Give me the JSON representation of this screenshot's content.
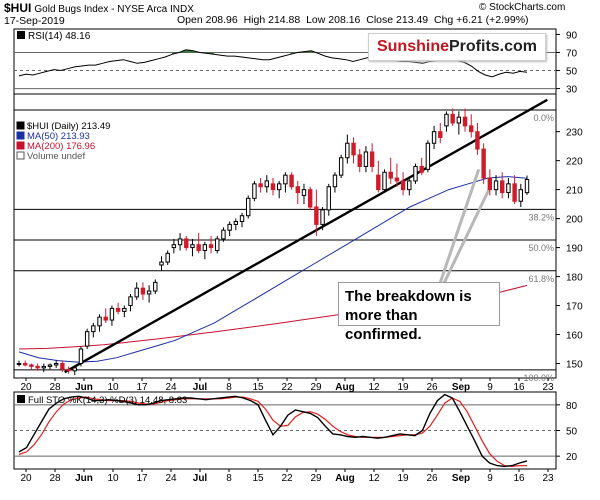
{
  "header": {
    "symbol": "$HUI",
    "name": "Gold Bugs Index - NYSE Arca INDX",
    "source": "© StockCharts.com",
    "date": "17-Sep-2019",
    "open_label": "Open",
    "open": "208.96",
    "high_label": "High",
    "high": "214.88",
    "low_label": "Low",
    "low": "208.16",
    "close_label": "Close",
    "close": "213.49",
    "chg_label": "Chg",
    "chg": "+6.21 (+2.99%)"
  },
  "watermark": {
    "part1": "Sunshine",
    "part2": "Profits.com"
  },
  "annotation": {
    "line1": "The breakdown is",
    "line2": "more than confirmed."
  },
  "colors": {
    "up": "#000000",
    "down": "#d11a2a",
    "ma50": "#1b2fa6",
    "ma200": "#c8102e",
    "rsi_fill": "#3c7a3c",
    "sto_k": "#000000",
    "sto_d": "#e0201c"
  },
  "chart_data": [
    {
      "type": "candlestick",
      "legend": [
        "$HUI (Daily) 213.49",
        "MA(50) 213.93",
        "MA(200) 176.96",
        "Volume undef"
      ],
      "ylim": [
        145,
        243
      ],
      "yticks": [
        150,
        160,
        170,
        180,
        190,
        200,
        210,
        220,
        230
      ],
      "x_ticks": [
        "20",
        "28",
        "Jun",
        "10",
        "17",
        "24",
        "Jul",
        "8",
        "15",
        "22",
        "29",
        "Aug",
        "12",
        "19",
        "26",
        "Sep",
        "9",
        "16",
        "23"
      ],
      "bold_ticks": [
        "Jun",
        "Jul",
        "Aug",
        "Sep"
      ],
      "fib_levels": [
        {
          "label": "0.0%",
          "value": 237.5
        },
        {
          "label": "38.2%",
          "value": 203.2
        },
        {
          "label": "50.0%",
          "value": 192.6
        },
        {
          "label": "61.8%",
          "value": 182.0
        },
        {
          "label": "100.0%",
          "value": 147.8
        }
      ],
      "ohlc": [
        [
          150,
          151,
          149,
          150
        ],
        [
          150,
          151,
          149,
          149.5
        ],
        [
          149.5,
          150,
          148,
          149
        ],
        [
          149,
          150,
          147.5,
          148.5
        ],
        [
          148.5,
          150,
          147,
          149
        ],
        [
          149,
          150,
          148,
          149.5
        ],
        [
          149.5,
          151,
          148.5,
          150
        ],
        [
          150,
          151,
          147,
          148
        ],
        [
          148,
          149,
          146.5,
          147.5
        ],
        [
          147.5,
          149,
          146,
          148.5
        ],
        [
          150,
          156,
          149,
          155
        ],
        [
          156,
          162,
          155,
          161
        ],
        [
          161,
          164,
          159,
          163
        ],
        [
          163,
          167,
          161,
          166
        ],
        [
          166,
          169,
          164,
          165
        ],
        [
          165,
          170,
          163,
          169
        ],
        [
          169,
          171,
          167,
          168
        ],
        [
          168,
          170,
          166,
          169
        ],
        [
          170,
          174,
          168,
          173
        ],
        [
          173,
          178,
          172,
          176
        ],
        [
          176,
          178,
          172,
          174
        ],
        [
          174,
          177,
          171,
          175
        ],
        [
          175,
          179,
          174,
          178
        ],
        [
          184,
          187,
          182,
          185
        ],
        [
          185,
          189,
          184,
          188
        ],
        [
          190,
          193,
          188,
          191
        ],
        [
          191,
          195,
          189,
          193
        ],
        [
          193,
          194,
          189,
          190
        ],
        [
          190,
          193,
          187,
          191
        ],
        [
          191,
          195,
          188,
          189
        ],
        [
          189,
          192,
          186,
          191
        ],
        [
          191,
          194,
          188,
          190
        ],
        [
          189,
          194,
          188,
          193
        ],
        [
          193,
          197,
          192,
          196
        ],
        [
          196,
          199,
          194,
          198
        ],
        [
          198,
          200,
          196,
          199
        ],
        [
          199,
          202,
          197,
          201
        ],
        [
          201,
          208,
          200,
          207
        ],
        [
          207,
          213,
          206,
          212
        ],
        [
          212,
          214,
          209,
          211
        ],
        [
          211,
          215,
          209,
          213
        ],
        [
          212,
          214,
          208,
          210
        ],
        [
          210,
          213,
          207,
          212
        ],
        [
          212,
          216,
          209,
          215
        ],
        [
          215,
          216,
          210,
          211
        ],
        [
          211,
          213,
          205,
          209
        ],
        [
          208,
          212,
          205,
          210
        ],
        [
          210,
          211,
          203,
          204
        ],
        [
          204,
          210,
          194,
          198
        ],
        [
          198,
          204,
          196,
          203
        ],
        [
          203,
          212,
          201,
          211
        ],
        [
          211,
          216,
          209,
          215
        ],
        [
          215,
          222,
          214,
          221
        ],
        [
          221,
          229,
          219,
          226
        ],
        [
          226,
          228,
          219,
          222
        ],
        [
          222,
          224,
          216,
          218
        ],
        [
          218,
          225,
          216,
          223
        ],
        [
          223,
          226,
          216,
          218
        ],
        [
          215,
          220,
          209,
          210
        ],
        [
          210,
          217,
          209,
          216
        ],
        [
          216,
          221,
          212,
          214
        ],
        [
          214,
          219,
          211,
          213
        ],
        [
          213,
          216,
          208,
          210
        ],
        [
          210,
          214,
          208,
          213
        ],
        [
          213,
          219,
          212,
          218
        ],
        [
          218,
          221,
          215,
          216
        ],
        [
          217,
          227,
          216,
          226
        ],
        [
          226,
          232,
          224,
          230
        ],
        [
          230,
          233,
          226,
          228
        ],
        [
          232,
          237,
          230,
          236
        ],
        [
          236,
          238,
          232,
          233
        ],
        [
          233,
          237,
          229,
          235
        ],
        [
          235,
          238,
          230,
          232
        ],
        [
          232,
          236,
          228,
          230
        ],
        [
          230,
          233,
          222,
          224
        ],
        [
          224,
          226,
          212,
          214
        ],
        [
          214,
          217,
          208,
          210
        ],
        [
          210,
          215,
          208,
          213
        ],
        [
          213,
          216,
          207,
          209
        ],
        [
          209,
          214,
          207,
          212
        ],
        [
          212,
          215,
          205,
          206
        ],
        [
          206,
          212,
          204,
          210
        ],
        [
          208.96,
          214.88,
          208.16,
          213.49
        ]
      ],
      "ma50": [
        154,
        152,
        151,
        150.5,
        150.8,
        152,
        154,
        156,
        158,
        161,
        164,
        168,
        172,
        176,
        180,
        184,
        188,
        192,
        196,
        200,
        204,
        207,
        210,
        212,
        214,
        214.5,
        213.93
      ],
      "ma200": [
        155,
        155.2,
        155.8,
        156.5,
        157.5,
        158.6,
        159.8,
        161,
        162.3,
        163.6,
        165,
        166.4,
        167.8,
        169.2,
        170.5,
        171.8,
        173,
        174.5,
        176.96
      ]
    },
    {
      "type": "line",
      "title": "RSI(14) 48.16",
      "ylim": [
        24,
        96
      ],
      "yticks": [
        30,
        50,
        70,
        90
      ],
      "reference_lines": [
        70,
        50,
        30
      ],
      "values": [
        44,
        46,
        45,
        47,
        49,
        51,
        50,
        52,
        54,
        55,
        56,
        56,
        58,
        60,
        61,
        62,
        60,
        58,
        59,
        61,
        63,
        65,
        68,
        70,
        73,
        72,
        70,
        69,
        68,
        67,
        66,
        66,
        65,
        64,
        63,
        62,
        62,
        64,
        66,
        68,
        70,
        71,
        72,
        69,
        66,
        64,
        63,
        62,
        60,
        62,
        64,
        66,
        64,
        62,
        61,
        60,
        60,
        59,
        58,
        60,
        61,
        62,
        63,
        61,
        59,
        55,
        49,
        45,
        43,
        46,
        48,
        47,
        49,
        48.16
      ]
    },
    {
      "type": "line",
      "title": "Full STO %K(14,3) %D(3) 14.48, 8.83",
      "series": [
        {
          "name": "%K",
          "value": 14.48
        },
        {
          "name": "%D",
          "value": 8.83
        }
      ],
      "ylim": [
        5,
        95
      ],
      "yticks": [
        20,
        50,
        80
      ],
      "reference_lines": [
        80,
        50,
        20
      ],
      "k": [
        25,
        30,
        45,
        60,
        75,
        82,
        87,
        89,
        90,
        88,
        85,
        85,
        86,
        85,
        84,
        82,
        80,
        80,
        82,
        85,
        86,
        87,
        88,
        88,
        87,
        86,
        87,
        88,
        89,
        90,
        88,
        85,
        80,
        62,
        45,
        55,
        68,
        74,
        72,
        70,
        65,
        55,
        46,
        45,
        43,
        42,
        43,
        42,
        41,
        42,
        44,
        46,
        45,
        44,
        50,
        70,
        85,
        92,
        88,
        72,
        55,
        38,
        20,
        12,
        9,
        8,
        9,
        12,
        14.48
      ],
      "d": [
        22,
        25,
        33,
        45,
        60,
        72,
        81,
        86,
        88,
        89,
        87,
        86,
        85,
        85,
        85,
        84,
        82,
        81,
        81,
        83,
        85,
        86,
        87,
        87,
        87,
        87,
        87,
        87,
        88,
        89,
        89,
        87,
        84,
        75,
        62,
        55,
        56,
        66,
        71,
        72,
        69,
        63,
        55,
        49,
        45,
        43,
        42,
        42,
        42,
        42,
        43,
        44,
        45,
        45,
        47,
        55,
        68,
        82,
        88,
        84,
        72,
        55,
        38,
        23,
        14,
        9,
        8,
        9,
        8.83
      ]
    }
  ]
}
